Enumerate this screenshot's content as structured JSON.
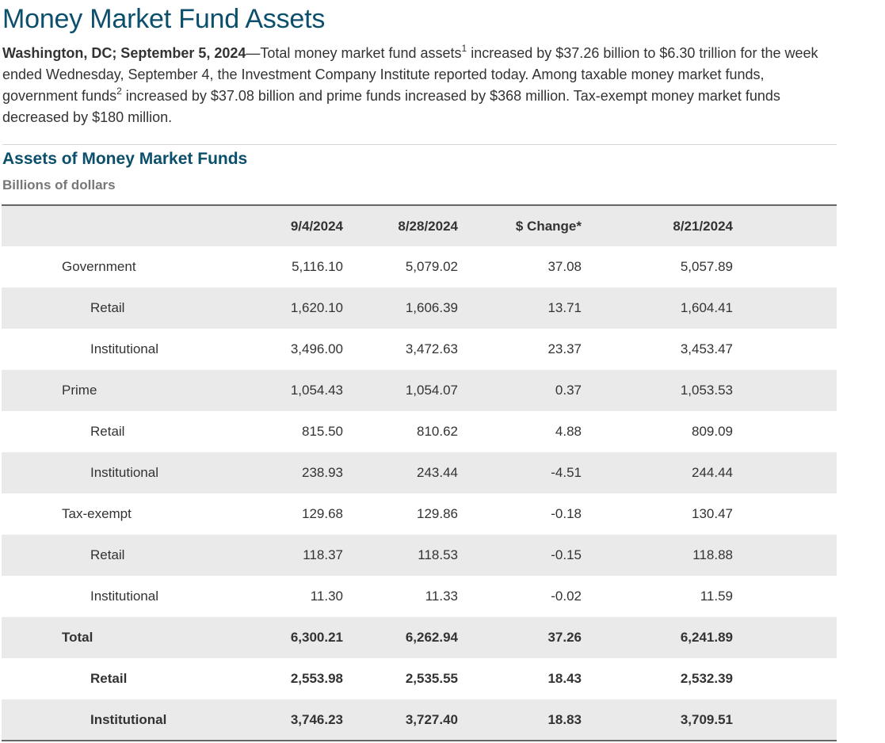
{
  "header": {
    "title": "Money Market Fund Assets"
  },
  "intro": {
    "dateline": "Washington, DC; September 5, 2024",
    "part1": "—Total money market fund assets",
    "fn1": "1",
    "part2": " increased by $37.26 billion to $6.30 trillion for the week ended Wednesday, September 4, the Investment Company Institute reported today. Among taxable money market funds, government funds",
    "fn2": "2",
    "part3": " increased by $37.08 billion and prime funds increased by $368 million. Tax-exempt money market funds decreased by $180 million."
  },
  "table": {
    "title": "Assets of Money Market Funds",
    "units": "Billions of dollars",
    "columns": [
      "",
      "9/4/2024",
      "8/28/2024",
      "$ Change*",
      "8/21/2024"
    ],
    "rows": [
      {
        "label": "Government",
        "values": [
          "5,116.10",
          "5,079.02",
          "37.08",
          "5,057.89"
        ]
      },
      {
        "label": "Retail",
        "values": [
          "1,620.10",
          "1,606.39",
          "13.71",
          "1,604.41"
        ]
      },
      {
        "label": "Institutional",
        "values": [
          "3,496.00",
          "3,472.63",
          "23.37",
          "3,453.47"
        ]
      },
      {
        "label": "Prime",
        "values": [
          "1,054.43",
          "1,054.07",
          "0.37",
          "1,053.53"
        ]
      },
      {
        "label": "Retail",
        "values": [
          "815.50",
          "810.62",
          "4.88",
          "809.09"
        ]
      },
      {
        "label": "Institutional",
        "values": [
          "238.93",
          "243.44",
          "-4.51",
          "244.44"
        ]
      },
      {
        "label": "Tax-exempt",
        "values": [
          "129.68",
          "129.86",
          "-0.18",
          "130.47"
        ]
      },
      {
        "label": "Retail",
        "values": [
          "118.37",
          "118.53",
          "-0.15",
          "118.88"
        ]
      },
      {
        "label": "Institutional",
        "values": [
          "11.30",
          "11.33",
          "-0.02",
          "11.59"
        ]
      },
      {
        "label": "Total",
        "values": [
          "6,300.21",
          "6,262.94",
          "37.26",
          "6,241.89"
        ]
      },
      {
        "label": "Retail",
        "values": [
          "2,553.98",
          "2,535.55",
          "18.43",
          "2,532.39"
        ]
      },
      {
        "label": "Institutional",
        "values": [
          "3,746.23",
          "3,727.40",
          "18.83",
          "3,709.51"
        ]
      }
    ]
  },
  "colors": {
    "heading": "#0b4f6c",
    "stripe": "#eaeaea",
    "text": "#333333",
    "units_text": "#777777"
  }
}
